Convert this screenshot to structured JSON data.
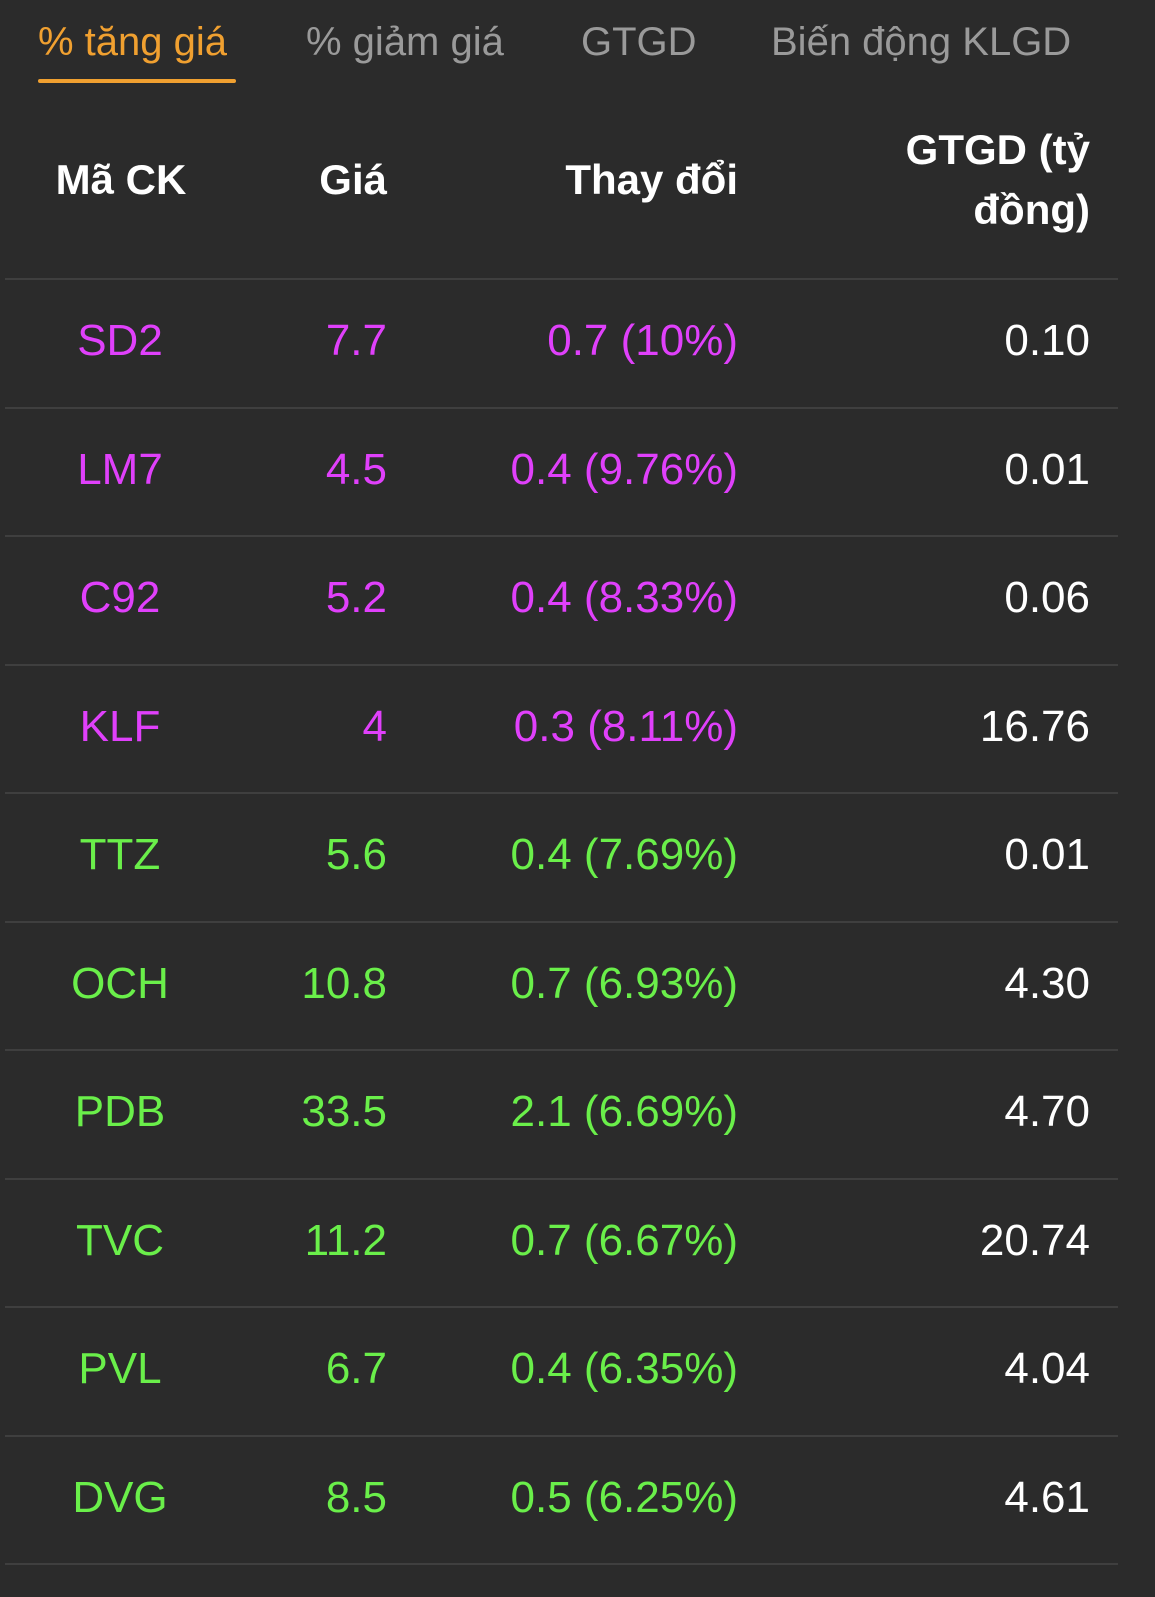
{
  "tabs": [
    {
      "label": "% tăng giá",
      "active": true
    },
    {
      "label": "% giảm giá",
      "active": false
    },
    {
      "label": "GTGD",
      "active": false
    },
    {
      "label": "Biến động KLGD",
      "active": false
    }
  ],
  "colors": {
    "background": "#2b2b2b",
    "active_tab": "#f0a030",
    "inactive_tab": "#9a9a9a",
    "ceiling": "#e040fb",
    "up": "#6aef4a",
    "value": "#ffffff"
  },
  "table": {
    "headers": {
      "code": "Mã CK",
      "price": "Giá",
      "change": "Thay đổi",
      "value": "GTGD (tỷ đồng)"
    },
    "rows": [
      {
        "code": "SD2",
        "price": "7.7",
        "change": "0.7 (10%)",
        "value": "0.10",
        "status": "ceiling"
      },
      {
        "code": "LM7",
        "price": "4.5",
        "change": "0.4 (9.76%)",
        "value": "0.01",
        "status": "ceiling"
      },
      {
        "code": "C92",
        "price": "5.2",
        "change": "0.4 (8.33%)",
        "value": "0.06",
        "status": "ceiling"
      },
      {
        "code": "KLF",
        "price": "4",
        "change": "0.3 (8.11%)",
        "value": "16.76",
        "status": "ceiling"
      },
      {
        "code": "TTZ",
        "price": "5.6",
        "change": "0.4 (7.69%)",
        "value": "0.01",
        "status": "up"
      },
      {
        "code": "OCH",
        "price": "10.8",
        "change": "0.7 (6.93%)",
        "value": "4.30",
        "status": "up"
      },
      {
        "code": "PDB",
        "price": "33.5",
        "change": "2.1 (6.69%)",
        "value": "4.70",
        "status": "up"
      },
      {
        "code": "TVC",
        "price": "11.2",
        "change": "0.7 (6.67%)",
        "value": "20.74",
        "status": "up"
      },
      {
        "code": "PVL",
        "price": "6.7",
        "change": "0.4 (6.35%)",
        "value": "4.04",
        "status": "up"
      },
      {
        "code": "DVG",
        "price": "8.5",
        "change": "0.5 (6.25%)",
        "value": "4.61",
        "status": "up"
      }
    ]
  }
}
